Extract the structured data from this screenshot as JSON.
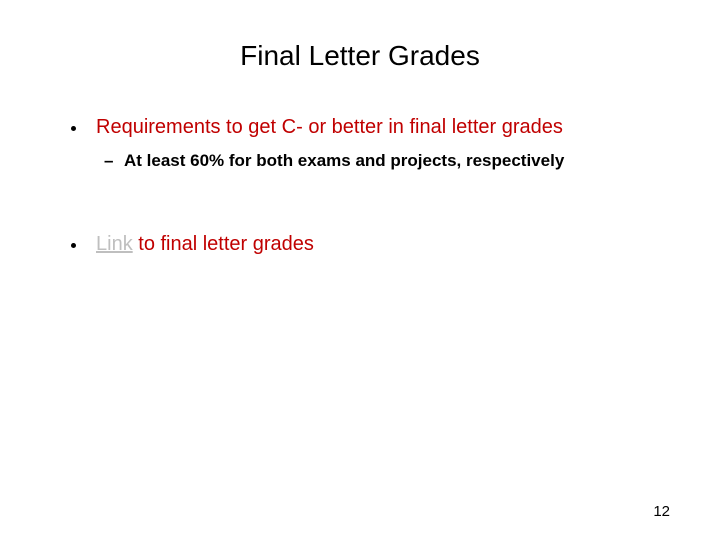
{
  "slide": {
    "title": "Final Letter Grades",
    "page_number": "12",
    "background_color": "#ffffff",
    "title_color": "#000000",
    "title_fontsize": 28,
    "bullet_color": "#c00000",
    "bullet_fontsize": 20,
    "subbullet_color": "#000000",
    "subbullet_fontsize": 17,
    "link_color": "#bfbfbf",
    "bullets": [
      {
        "text": "Requirements to get C- or better in final letter grades",
        "sub": [
          "At least 60% for both exams and projects, respectively"
        ]
      },
      {
        "link_word": "Link",
        "rest": " to final letter grades"
      }
    ]
  }
}
